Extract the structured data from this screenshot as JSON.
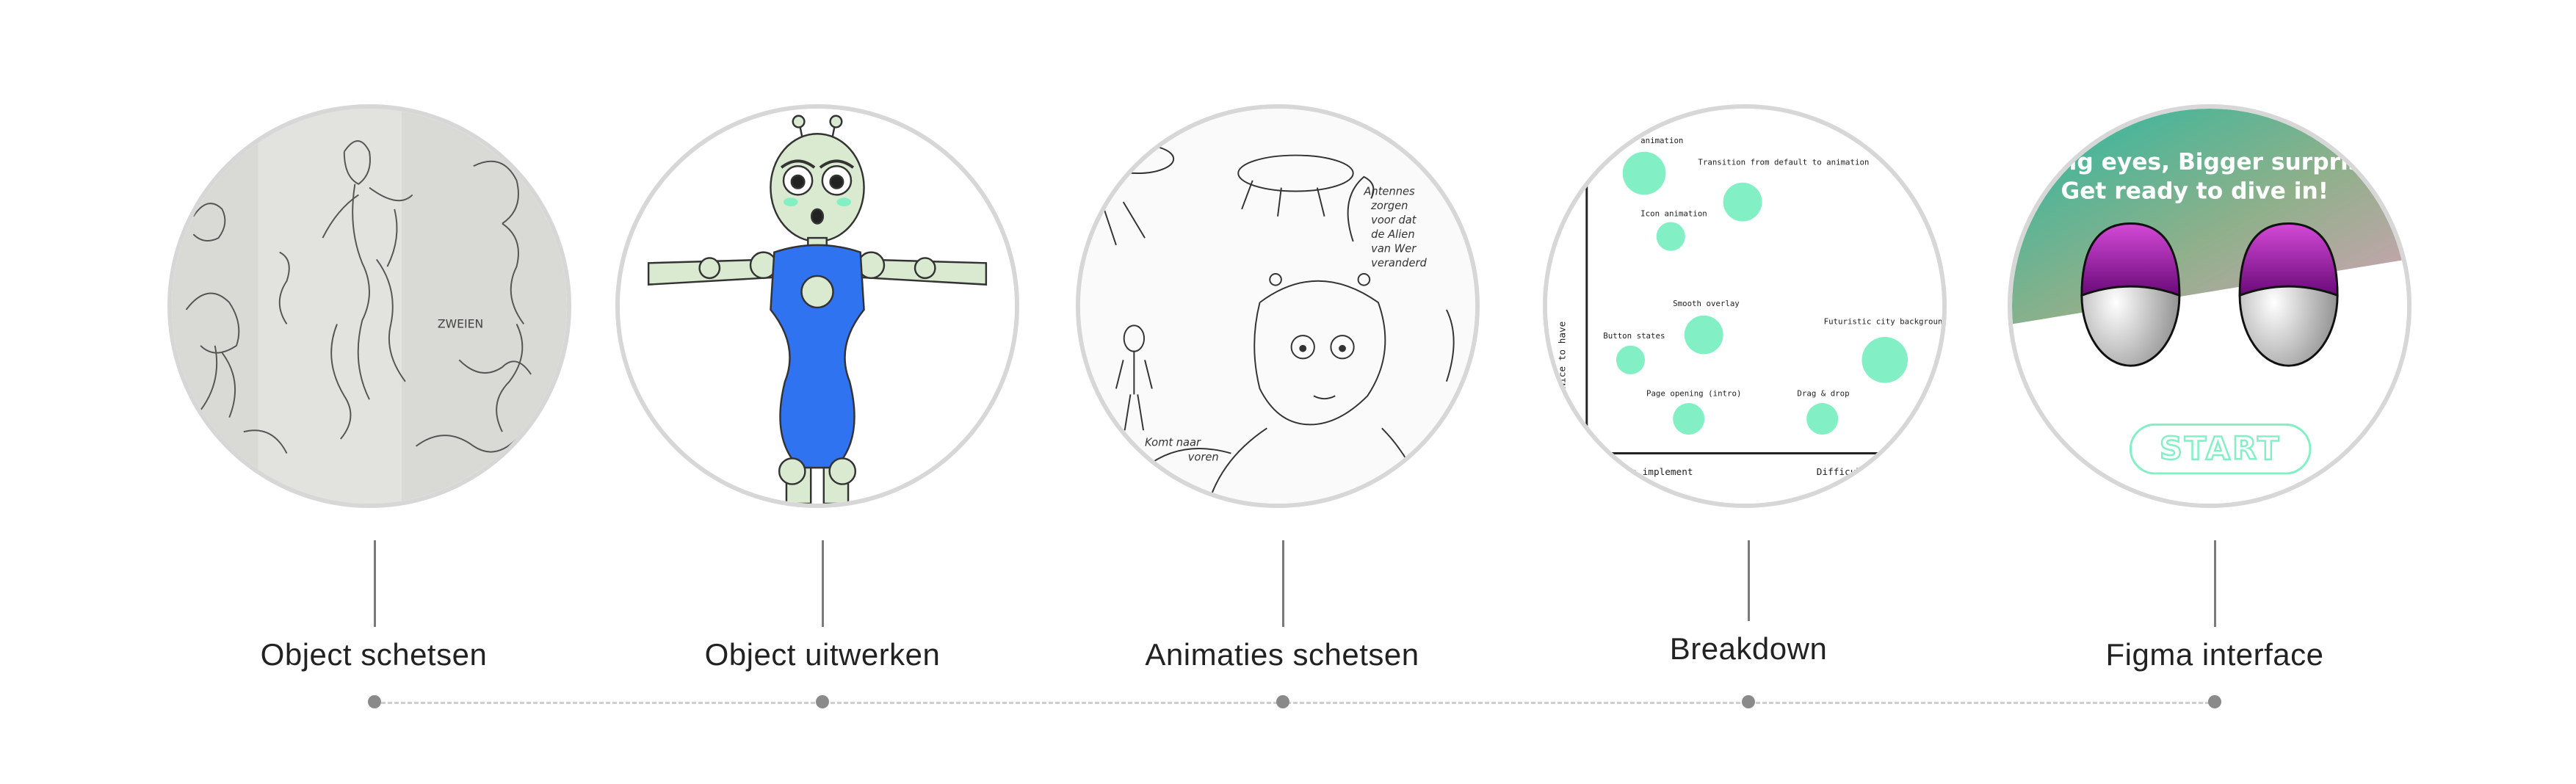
{
  "steps": [
    {
      "label": "Object schetsen"
    },
    {
      "label": "Object uitwerken"
    },
    {
      "label": "Animaties schetsen"
    },
    {
      "label": "Breakdown"
    },
    {
      "label": "Figma interface"
    }
  ],
  "sketch1": {
    "note": "ZWEIEN"
  },
  "sketch3": {
    "note1": [
      "Antennes",
      "zorgen",
      "voor dat",
      "de Alien",
      "van Wer",
      "veranderd"
    ],
    "note2": [
      "Komt naar",
      "voren"
    ]
  },
  "breakdown": {
    "ylabel": "Nice to have",
    "xlabel_left": "Easy to implement",
    "xlabel_right": "Difficult",
    "items": [
      "animation",
      "Transition from default to animation",
      "Icon animation",
      "Smooth overlay",
      "Button states",
      "Futuristic city background",
      "Page opening (intro)",
      "Drag & drop"
    ]
  },
  "figma": {
    "headline1": "Big eyes, Bigger surprise",
    "headline2": "Get ready to dive in!",
    "start_label": "START"
  },
  "colors": {
    "accent": "#82f0c4",
    "eyelid": "#8a1a9a",
    "circle_border": "#d7d7d7"
  }
}
